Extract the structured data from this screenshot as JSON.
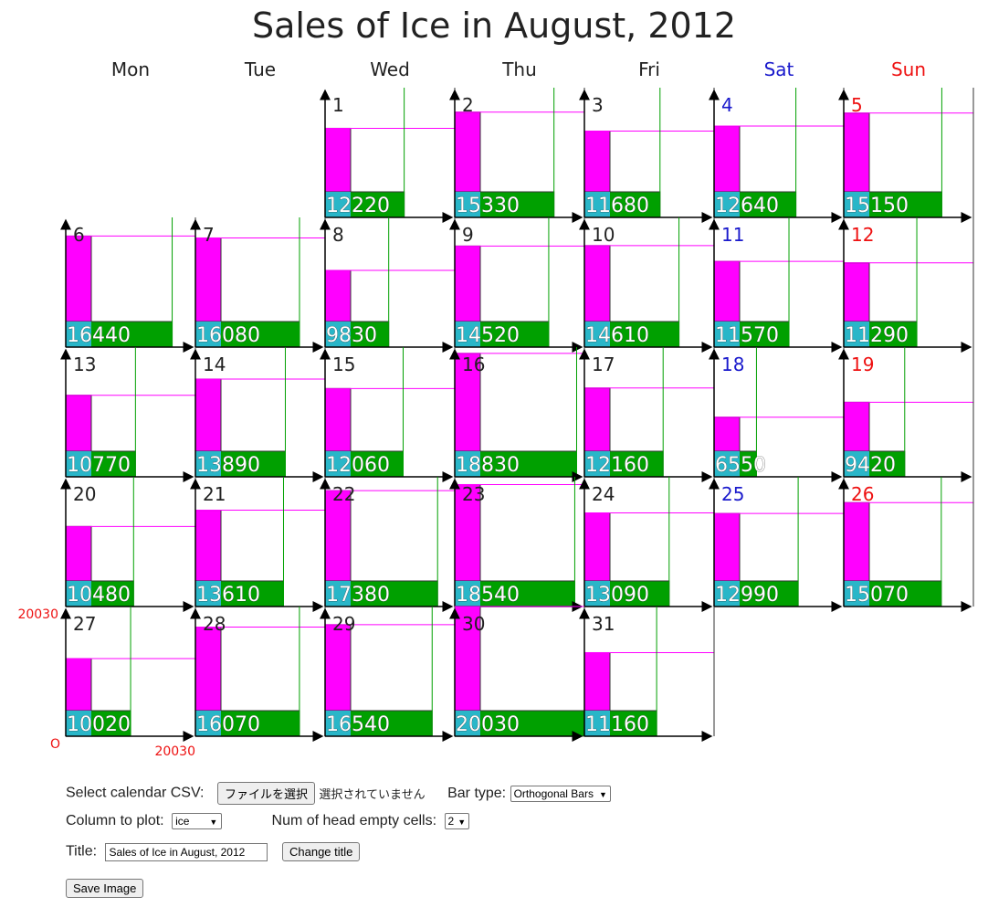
{
  "title": "Sales of Ice in August, 2012",
  "weekdays": [
    "Mon",
    "Tue",
    "Wed",
    "Thu",
    "Fri",
    "Sat",
    "Sun"
  ],
  "colors": {
    "weekday": "#222222",
    "saturday": "#1a1acc",
    "sunday": "#ee1111",
    "bar_vertical": "#ff00ff",
    "bar_horizontal": "#00a000",
    "label_bg": "#29b6c8",
    "axis_label": "#ee1111"
  },
  "chart_data": {
    "type": "bar",
    "subtype": "calendar orthogonal bars",
    "title": "Sales of Ice in August, 2012",
    "month": "August 2012",
    "head_empty_cells": 2,
    "axis_max": 20030,
    "axis_labels": {
      "origin": "O",
      "x_max": "20030",
      "y_max": "20030"
    },
    "days": [
      1,
      2,
      3,
      4,
      5,
      6,
      7,
      8,
      9,
      10,
      11,
      12,
      13,
      14,
      15,
      16,
      17,
      18,
      19,
      20,
      21,
      22,
      23,
      24,
      25,
      26,
      27,
      28,
      29,
      30,
      31
    ],
    "values": [
      12220,
      15330,
      11680,
      12640,
      15150,
      16440,
      16080,
      9830,
      14520,
      14610,
      11570,
      11290,
      10770,
      13890,
      12060,
      18830,
      12160,
      6550,
      9420,
      10480,
      13610,
      17380,
      18540,
      13090,
      12990,
      15070,
      10020,
      16070,
      16540,
      20030,
      11160
    ]
  },
  "controls": {
    "csv_label": "Select calendar CSV:",
    "file_button": "ファイルを選択",
    "no_file": "選択されていません",
    "bar_type_label": "Bar type:",
    "bar_type_value": "Orthogonal Bars",
    "column_label": "Column to plot:",
    "column_value": "ice",
    "empty_cells_label": "Num of head empty cells:",
    "empty_cells_value": "2",
    "title_label": "Title:",
    "title_value": "Sales of Ice in August, 2012",
    "change_title_button": "Change title",
    "save_button": "Save Image"
  }
}
